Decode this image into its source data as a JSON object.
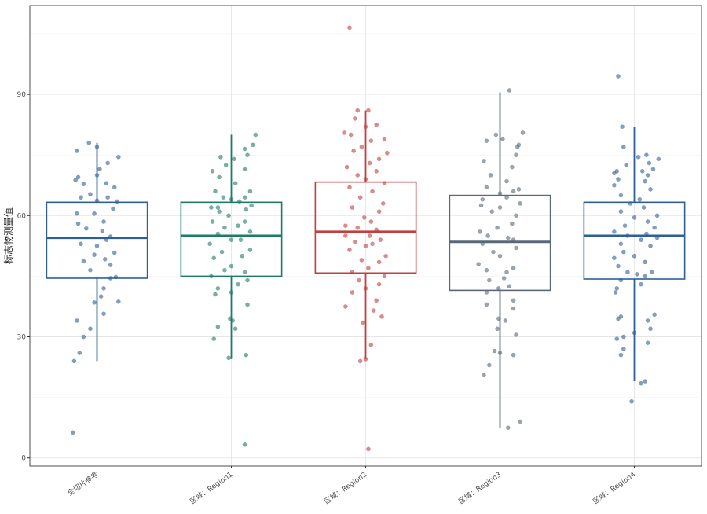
{
  "chart_data": {
    "type": "boxplot",
    "ylabel": "标志物测量值",
    "xlabel": "",
    "ylim": [
      -2,
      112
    ],
    "yticks": [
      0,
      30,
      60,
      90
    ],
    "grid": true,
    "categories": [
      "全切片参考",
      "区域：Region1",
      "区域：Region2",
      "区域：Region3",
      "区域：Region4"
    ],
    "colors": [
      "#2e5f97",
      "#1f7a68",
      "#c0403f",
      "#56687a",
      "#2e5f97"
    ],
    "boxes": [
      {
        "q1": 44.5,
        "median": 54.5,
        "q3": 63.3,
        "whisker_low": 24,
        "whisker_high": 78
      },
      {
        "q1": 45,
        "median": 55,
        "q3": 63.3,
        "whisker_low": 24.5,
        "whisker_high": 80
      },
      {
        "q1": 45.8,
        "median": 56,
        "q3": 68.3,
        "whisker_low": 24.5,
        "whisker_high": 86
      },
      {
        "q1": 41.5,
        "median": 53.5,
        "q3": 65,
        "whisker_low": 7.5,
        "whisker_high": 90.5
      },
      {
        "q1": 44.3,
        "median": 55,
        "q3": 63.3,
        "whisker_low": 19,
        "whisker_high": 82
      }
    ],
    "points": [
      [
        [
          -0.18,
          6.3
        ],
        [
          -0.17,
          24
        ],
        [
          -0.13,
          26
        ],
        [
          -0.15,
          34
        ],
        [
          -0.1,
          30
        ],
        [
          -0.05,
          32
        ],
        [
          0.05,
          35.7
        ],
        [
          0.16,
          38.7
        ],
        [
          -0.02,
          38.5
        ],
        [
          0.03,
          40
        ],
        [
          0.05,
          42
        ],
        [
          0.1,
          44.5
        ],
        [
          0.14,
          44.8
        ],
        [
          -0.05,
          46.5
        ],
        [
          0.1,
          47.8
        ],
        [
          -0.1,
          48.7
        ],
        [
          0.06,
          49.2
        ],
        [
          -0.02,
          50.3
        ],
        [
          0.13,
          50.8
        ],
        [
          0.0,
          52.5
        ],
        [
          -0.12,
          53
        ],
        [
          0.07,
          54
        ],
        [
          0.1,
          54.8
        ],
        [
          0.04,
          56.2
        ],
        [
          -0.08,
          56.8
        ],
        [
          -0.14,
          58
        ],
        [
          0.05,
          58.5
        ],
        [
          -0.02,
          60.5
        ],
        [
          -0.15,
          60.5
        ],
        [
          0.12,
          61.7
        ],
        [
          0.15,
          63.5
        ],
        [
          0.0,
          63.7
        ],
        [
          0.08,
          64.5
        ],
        [
          -0.12,
          64.5
        ],
        [
          -0.05,
          65.3
        ],
        [
          0.13,
          67
        ],
        [
          0.07,
          68
        ],
        [
          -0.1,
          67.8
        ],
        [
          -0.16,
          68.8
        ],
        [
          -0.14,
          69.5
        ],
        [
          0.0,
          70
        ],
        [
          0.02,
          71.5
        ],
        [
          0.08,
          73
        ],
        [
          0.16,
          74.5
        ],
        [
          -0.15,
          76
        ],
        [
          0.0,
          77
        ],
        [
          -0.06,
          78
        ]
      ],
      [
        [
          0.1,
          3.3
        ],
        [
          -0.02,
          24.8
        ],
        [
          0.11,
          25.5
        ],
        [
          -0.13,
          29.5
        ],
        [
          -0.1,
          32.5
        ],
        [
          0.03,
          32
        ],
        [
          0.01,
          34
        ],
        [
          -0.01,
          34.5
        ],
        [
          0.12,
          38
        ],
        [
          -0.12,
          40.5
        ],
        [
          0.0,
          41
        ],
        [
          -0.1,
          42
        ],
        [
          0.05,
          43
        ],
        [
          0.12,
          44
        ],
        [
          -0.15,
          45
        ],
        [
          -0.05,
          46.5
        ],
        [
          0.1,
          46
        ],
        [
          0.0,
          47.5
        ],
        [
          -0.13,
          49.5
        ],
        [
          0.08,
          50
        ],
        [
          -0.07,
          51
        ],
        [
          0.14,
          51.5
        ],
        [
          -0.16,
          53
        ],
        [
          0.07,
          54
        ],
        [
          0.0,
          54
        ],
        [
          -0.1,
          55.5
        ],
        [
          0.14,
          56
        ],
        [
          -0.05,
          57
        ],
        [
          0.05,
          57.5
        ],
        [
          0.1,
          58.5
        ],
        [
          -0.14,
          58.5
        ],
        [
          -0.02,
          60
        ],
        [
          -0.09,
          61
        ],
        [
          0.11,
          61.5
        ],
        [
          -0.1,
          62
        ],
        [
          0.15,
          62.5
        ],
        [
          -0.15,
          62
        ],
        [
          0.06,
          63.5
        ],
        [
          0.0,
          64
        ],
        [
          0.1,
          64.5
        ],
        [
          -0.06,
          64.5
        ],
        [
          0.14,
          66
        ],
        [
          -0.12,
          66
        ],
        [
          0.03,
          68
        ],
        [
          -0.09,
          69.5
        ],
        [
          -0.14,
          71
        ],
        [
          0.1,
          71.5
        ],
        [
          -0.04,
          72.5
        ],
        [
          0.02,
          74
        ],
        [
          -0.08,
          74.5
        ],
        [
          0.12,
          75
        ],
        [
          0.1,
          76.5
        ],
        [
          0.16,
          77.5
        ],
        [
          0.18,
          80
        ]
      ],
      [
        [
          0.02,
          2.2
        ],
        [
          -0.04,
          24
        ],
        [
          0.0,
          24.5
        ],
        [
          0.04,
          28
        ],
        [
          0.12,
          35
        ],
        [
          -0.02,
          33.5
        ],
        [
          0.06,
          36.5
        ],
        [
          -0.15,
          37.5
        ],
        [
          0.08,
          39
        ],
        [
          -0.1,
          41
        ],
        [
          0.0,
          42
        ],
        [
          0.1,
          43
        ],
        [
          -0.05,
          44
        ],
        [
          0.14,
          45
        ],
        [
          -0.1,
          46
        ],
        [
          0.02,
          47
        ],
        [
          0.1,
          48.5
        ],
        [
          -0.03,
          49
        ],
        [
          0.15,
          50
        ],
        [
          -0.12,
          51.5
        ],
        [
          0.0,
          52.5
        ],
        [
          0.05,
          53
        ],
        [
          -0.08,
          53.5
        ],
        [
          0.11,
          54
        ],
        [
          -0.15,
          55
        ],
        [
          0.03,
          55
        ],
        [
          0.08,
          56.5
        ],
        [
          -0.06,
          57
        ],
        [
          -0.15,
          57.5
        ],
        [
          0.04,
          58.5
        ],
        [
          -0.01,
          59.5
        ],
        [
          0.1,
          61
        ],
        [
          -0.1,
          62
        ],
        [
          0.13,
          63
        ],
        [
          -0.04,
          64.5
        ],
        [
          0.05,
          66
        ],
        [
          0.14,
          68
        ],
        [
          -0.12,
          67
        ],
        [
          0.0,
          69
        ],
        [
          -0.06,
          70
        ],
        [
          0.08,
          71
        ],
        [
          -0.14,
          72
        ],
        [
          0.03,
          73
        ],
        [
          0.1,
          74
        ],
        [
          0.16,
          75.5
        ],
        [
          -0.09,
          76
        ],
        [
          -0.03,
          77
        ],
        [
          0.04,
          78.5
        ],
        [
          0.14,
          79
        ],
        [
          -0.16,
          80.5
        ],
        [
          -0.11,
          80
        ],
        [
          0.0,
          82
        ],
        [
          0.08,
          82.5
        ],
        [
          -0.08,
          84
        ],
        [
          -0.06,
          86
        ],
        [
          0.02,
          86
        ],
        [
          -0.12,
          106.5
        ]
      ],
      [
        [
          0.06,
          7.5
        ],
        [
          0.15,
          9
        ],
        [
          -0.12,
          20.5
        ],
        [
          -0.08,
          23
        ],
        [
          -0.04,
          26.5
        ],
        [
          0.1,
          25.5
        ],
        [
          0.0,
          26
        ],
        [
          0.12,
          30.5
        ],
        [
          -0.02,
          32
        ],
        [
          -0.01,
          34.5
        ],
        [
          0.04,
          34
        ],
        [
          0.1,
          37
        ],
        [
          -0.1,
          38
        ],
        [
          0.1,
          39
        ],
        [
          -0.1,
          41
        ],
        [
          -0.01,
          42
        ],
        [
          0.07,
          42.5
        ],
        [
          -0.08,
          44
        ],
        [
          0.03,
          44.5
        ],
        [
          0.05,
          46
        ],
        [
          -0.1,
          46.5
        ],
        [
          0.1,
          47
        ],
        [
          -0.16,
          48
        ],
        [
          0.0,
          50
        ],
        [
          -0.05,
          51
        ],
        [
          0.12,
          52
        ],
        [
          -0.13,
          53
        ],
        [
          0.06,
          54.5
        ],
        [
          0.1,
          54
        ],
        [
          -0.09,
          55
        ],
        [
          -0.15,
          56
        ],
        [
          -0.02,
          57
        ],
        [
          0.09,
          58
        ],
        [
          0.12,
          60
        ],
        [
          -0.06,
          61
        ],
        [
          0.0,
          62
        ],
        [
          -0.14,
          62.5
        ],
        [
          0.15,
          63
        ],
        [
          -0.13,
          64
        ],
        [
          0.05,
          64.5
        ],
        [
          0.0,
          65.5
        ],
        [
          0.1,
          66
        ],
        [
          0.14,
          66.5
        ],
        [
          -0.1,
          67
        ],
        [
          0.05,
          68.5
        ],
        [
          -0.07,
          70
        ],
        [
          0.09,
          72
        ],
        [
          -0.12,
          73.5
        ],
        [
          0.12,
          75
        ],
        [
          0.13,
          77
        ],
        [
          0.14,
          77.5
        ],
        [
          -0.1,
          78.5
        ],
        [
          0.02,
          79
        ],
        [
          -0.03,
          80
        ],
        [
          0.17,
          80.5
        ],
        [
          0.07,
          91
        ]
      ],
      [
        [
          -0.02,
          14
        ],
        [
          0.05,
          18.5
        ],
        [
          0.08,
          19
        ],
        [
          -0.08,
          27
        ],
        [
          -0.1,
          25.5
        ],
        [
          0.1,
          28.5
        ],
        [
          -0.13,
          29.5
        ],
        [
          -0.08,
          30
        ],
        [
          0.0,
          31
        ],
        [
          0.12,
          32
        ],
        [
          0.1,
          34
        ],
        [
          -0.12,
          34.5
        ],
        [
          -0.1,
          35
        ],
        [
          0.15,
          35.5
        ],
        [
          -0.14,
          41
        ],
        [
          -0.13,
          42
        ],
        [
          0.05,
          43
        ],
        [
          -0.1,
          44
        ],
        [
          0.08,
          45
        ],
        [
          0.02,
          45.5
        ],
        [
          -0.05,
          46
        ],
        [
          0.13,
          46
        ],
        [
          -0.12,
          47.5
        ],
        [
          0.08,
          48.5
        ],
        [
          -0.15,
          49.5
        ],
        [
          0.0,
          50
        ],
        [
          -0.08,
          51
        ],
        [
          0.12,
          52.5
        ],
        [
          -0.1,
          53
        ],
        [
          0.05,
          54
        ],
        [
          0.17,
          54.5
        ],
        [
          -0.05,
          55
        ],
        [
          0.09,
          55.5
        ],
        [
          -0.15,
          56
        ],
        [
          0.15,
          57
        ],
        [
          -0.07,
          57.5
        ],
        [
          0.1,
          58.5
        ],
        [
          0.0,
          59.5
        ],
        [
          0.17,
          60
        ],
        [
          -0.1,
          61
        ],
        [
          0.07,
          62
        ],
        [
          -0.03,
          63
        ],
        [
          0.04,
          64
        ],
        [
          -0.1,
          65
        ],
        [
          0.12,
          66.5
        ],
        [
          -0.15,
          67.5
        ],
        [
          0.08,
          68.5
        ],
        [
          -0.12,
          69
        ],
        [
          0.1,
          70
        ],
        [
          -0.15,
          70.5
        ],
        [
          -0.13,
          71
        ],
        [
          0.06,
          71
        ],
        [
          0.14,
          71.5
        ],
        [
          -0.06,
          72.5
        ],
        [
          0.11,
          73
        ],
        [
          0.18,
          74
        ],
        [
          0.03,
          74.5
        ],
        [
          0.09,
          75
        ],
        [
          -0.08,
          77
        ],
        [
          -0.09,
          82
        ],
        [
          -0.12,
          94.5
        ]
      ]
    ]
  }
}
